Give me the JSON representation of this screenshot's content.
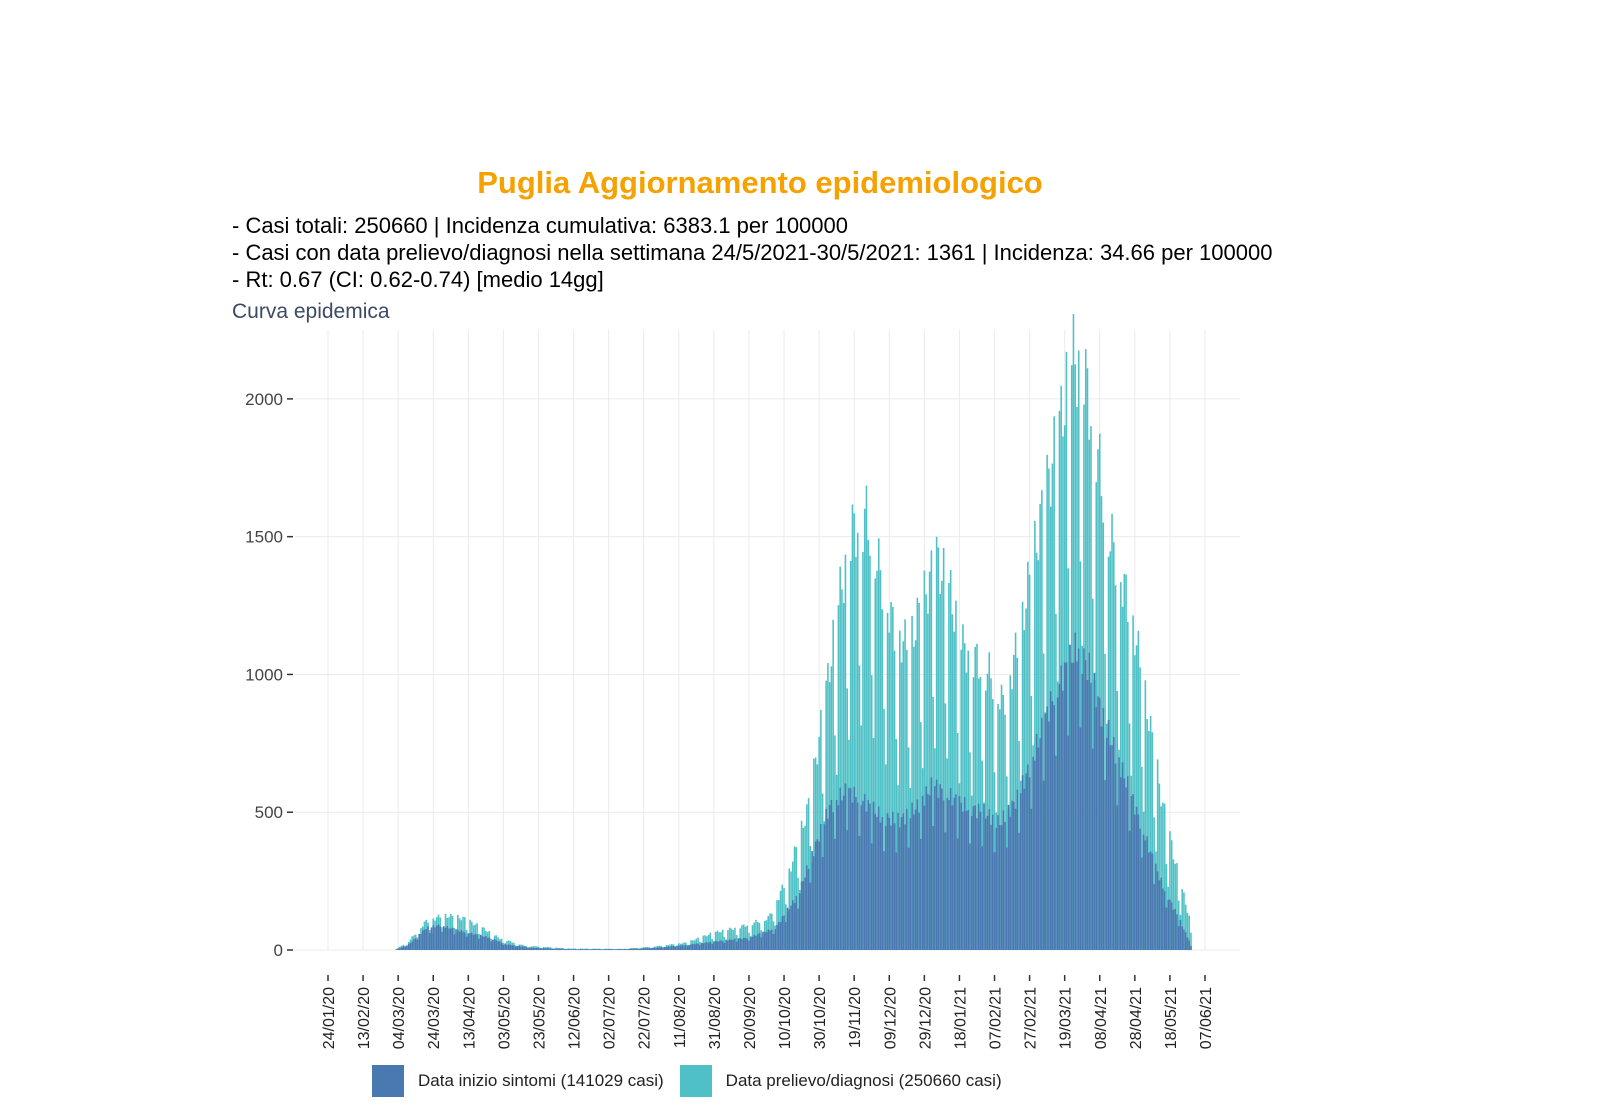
{
  "header": {
    "title": "Puglia Aggiornamento epidemiologico",
    "line1": "- Casi totali: 250660 | Incidenza cumulativa: 6383.1 per 100000",
    "line2": "- Casi con data prelievo/diagnosi nella settimana 24/5/2021-30/5/2021: 1361 | Incidenza: 34.66 per 100000",
    "line3": "- Rt: 0.67 (CI: 0.62-0.74) [medio 14gg]",
    "subtitle": "Curva epidemica"
  },
  "colors": {
    "sintomi": "#4a78b0",
    "diagnosi": "#4fc1c6"
  },
  "chart_data": {
    "type": "bar",
    "x_start": "2020-01-24",
    "x_end": "2021-06-07",
    "x_ticks": [
      "24/01/20",
      "13/02/20",
      "04/03/20",
      "24/03/20",
      "13/04/20",
      "03/05/20",
      "23/05/20",
      "12/06/20",
      "02/07/20",
      "22/07/20",
      "11/08/20",
      "31/08/20",
      "20/09/20",
      "10/10/20",
      "30/10/20",
      "19/11/20",
      "09/12/20",
      "29/12/20",
      "18/01/21",
      "07/02/21",
      "27/02/21",
      "19/03/21",
      "08/04/21",
      "28/04/21",
      "18/05/21",
      "07/06/21"
    ],
    "y_ticks": [
      0,
      500,
      1000,
      1500,
      2000
    ],
    "ylim": [
      0,
      2250
    ],
    "grid": true,
    "series": [
      {
        "name": "Data inizio sintomi (141029 casi)",
        "key": "sintomi",
        "points": [
          [
            "2020-03-02",
            0
          ],
          [
            "2020-03-10",
            20
          ],
          [
            "2020-03-20",
            80
          ],
          [
            "2020-03-28",
            90
          ],
          [
            "2020-04-05",
            75
          ],
          [
            "2020-04-15",
            60
          ],
          [
            "2020-04-25",
            45
          ],
          [
            "2020-05-05",
            20
          ],
          [
            "2020-05-20",
            8
          ],
          [
            "2020-06-10",
            3
          ],
          [
            "2020-07-10",
            3
          ],
          [
            "2020-07-28",
            8
          ],
          [
            "2020-08-15",
            18
          ],
          [
            "2020-08-31",
            30
          ],
          [
            "2020-09-20",
            45
          ],
          [
            "2020-10-05",
            80
          ],
          [
            "2020-10-18",
            200
          ],
          [
            "2020-10-28",
            380
          ],
          [
            "2020-11-05",
            520
          ],
          [
            "2020-11-15",
            580
          ],
          [
            "2020-11-25",
            540
          ],
          [
            "2020-12-05",
            480
          ],
          [
            "2020-12-15",
            470
          ],
          [
            "2020-12-25",
            520
          ],
          [
            "2021-01-03",
            600
          ],
          [
            "2021-01-12",
            560
          ],
          [
            "2021-01-22",
            520
          ],
          [
            "2021-02-01",
            500
          ],
          [
            "2021-02-10",
            460
          ],
          [
            "2021-02-20",
            550
          ],
          [
            "2021-03-01",
            700
          ],
          [
            "2021-03-10",
            880
          ],
          [
            "2021-03-18",
            1000
          ],
          [
            "2021-03-26",
            1100
          ],
          [
            "2021-04-02",
            1020
          ],
          [
            "2021-04-10",
            840
          ],
          [
            "2021-04-18",
            700
          ],
          [
            "2021-04-26",
            560
          ],
          [
            "2021-05-05",
            390
          ],
          [
            "2021-05-14",
            230
          ],
          [
            "2021-05-22",
            130
          ],
          [
            "2021-05-30",
            20
          ]
        ]
      },
      {
        "name": "Data prelievo/diagnosi (250660 casi)",
        "key": "diagnosi",
        "points": [
          [
            "2020-03-02",
            0
          ],
          [
            "2020-03-10",
            30
          ],
          [
            "2020-03-20",
            100
          ],
          [
            "2020-03-30",
            120
          ],
          [
            "2020-04-10",
            110
          ],
          [
            "2020-04-20",
            80
          ],
          [
            "2020-05-01",
            40
          ],
          [
            "2020-05-15",
            15
          ],
          [
            "2020-06-10",
            5
          ],
          [
            "2020-07-10",
            4
          ],
          [
            "2020-07-28",
            12
          ],
          [
            "2020-08-15",
            25
          ],
          [
            "2020-08-31",
            60
          ],
          [
            "2020-09-15",
            80
          ],
          [
            "2020-10-01",
            110
          ],
          [
            "2020-10-12",
            250
          ],
          [
            "2020-10-24",
            500
          ],
          [
            "2020-11-02",
            850
          ],
          [
            "2020-11-10",
            1200
          ],
          [
            "2020-11-18",
            1450
          ],
          [
            "2020-11-26",
            1500
          ],
          [
            "2020-12-04",
            1300
          ],
          [
            "2020-12-12",
            1100
          ],
          [
            "2020-12-20",
            1050
          ],
          [
            "2020-12-28",
            1200
          ],
          [
            "2021-01-05",
            1350
          ],
          [
            "2021-01-12",
            1250
          ],
          [
            "2021-01-20",
            1050
          ],
          [
            "2021-01-28",
            1000
          ],
          [
            "2021-02-05",
            950
          ],
          [
            "2021-02-12",
            850
          ],
          [
            "2021-02-20",
            1050
          ],
          [
            "2021-03-01",
            1350
          ],
          [
            "2021-03-09",
            1600
          ],
          [
            "2021-03-16",
            1800
          ],
          [
            "2021-03-23",
            2050
          ],
          [
            "2021-03-30",
            2000
          ],
          [
            "2021-04-06",
            1750
          ],
          [
            "2021-04-13",
            1450
          ],
          [
            "2021-04-20",
            1300
          ],
          [
            "2021-04-28",
            1100
          ],
          [
            "2021-05-06",
            800
          ],
          [
            "2021-05-14",
            500
          ],
          [
            "2021-05-22",
            280
          ],
          [
            "2021-05-30",
            90
          ]
        ]
      }
    ]
  },
  "legend": {
    "sintomi_label": "Data inizio sintomi (141029 casi)",
    "diagnosi_label": "Data prelievo/diagnosi (250660 casi)"
  }
}
